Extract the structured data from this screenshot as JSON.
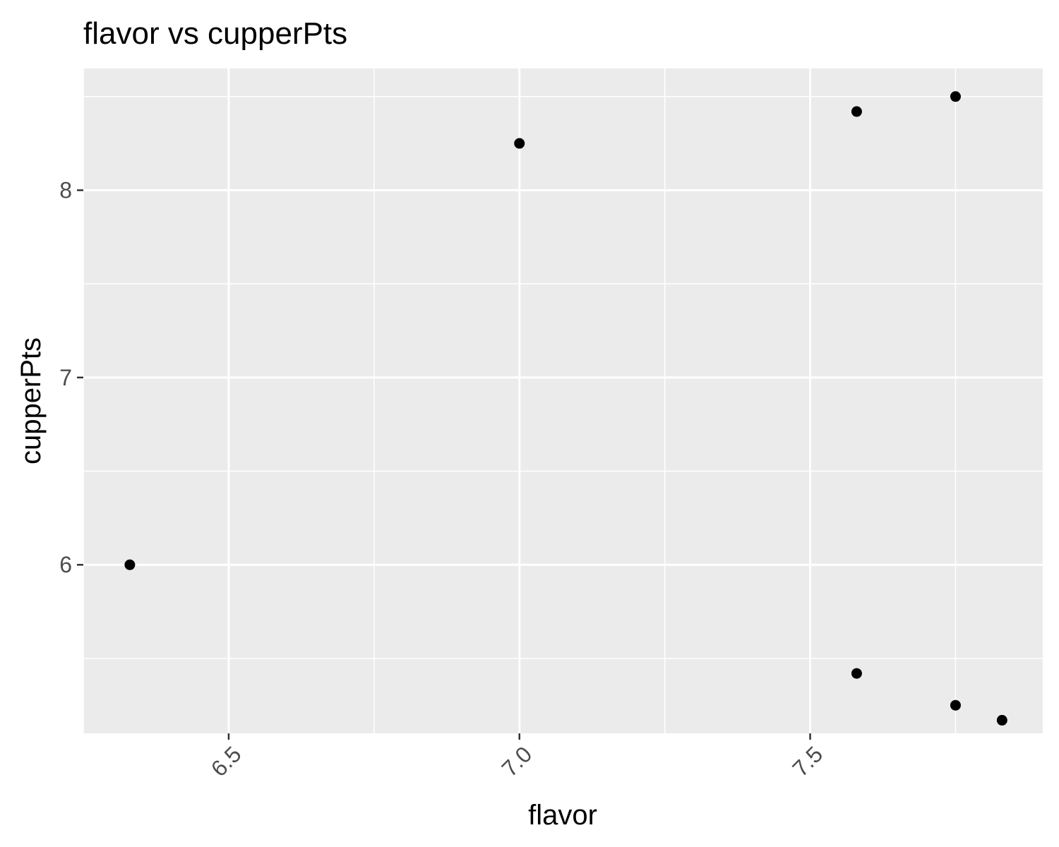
{
  "chart_data": {
    "type": "scatter",
    "title": "flavor vs cupperPts",
    "xlabel": "flavor",
    "ylabel": "cupperPts",
    "xlim": [
      6.25,
      7.9
    ],
    "ylim": [
      5.1,
      8.65
    ],
    "x_ticks": [
      6.5,
      7.0,
      7.5
    ],
    "x_tick_labels": [
      "6.5",
      "7.0",
      "7.5"
    ],
    "y_ticks": [
      6,
      7,
      8
    ],
    "y_tick_labels": [
      "6",
      "7",
      "8"
    ],
    "grid": true,
    "point_color": "#000000",
    "panel_background": "#ebebeb",
    "points": [
      {
        "x": 6.33,
        "y": 6.0
      },
      {
        "x": 7.0,
        "y": 8.25
      },
      {
        "x": 7.58,
        "y": 8.42
      },
      {
        "x": 7.75,
        "y": 8.5
      },
      {
        "x": 7.58,
        "y": 5.42
      },
      {
        "x": 7.75,
        "y": 5.25
      },
      {
        "x": 7.83,
        "y": 5.17
      }
    ]
  }
}
